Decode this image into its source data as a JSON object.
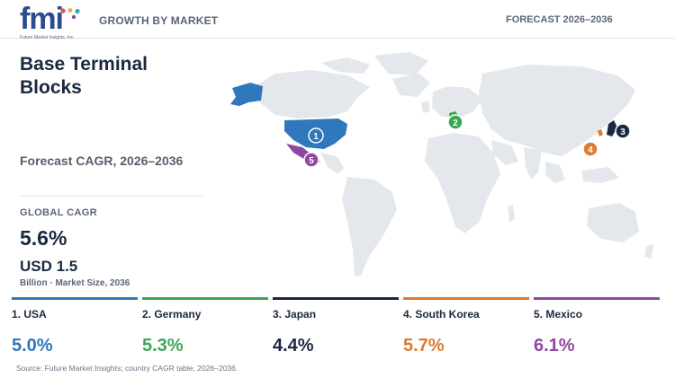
{
  "header": {
    "logo_text": "fmi",
    "logo_tagline": "Future Market Insights, Inc.",
    "growth_label": "GROWTH BY MARKET",
    "forecast_label": "FORECAST 2026–2036"
  },
  "summary": {
    "title": "Base Terminal Blocks",
    "cagr_subtitle": "Forecast CAGR, 2026–2036",
    "global_label": "GLOBAL CAGR",
    "global_value": "5.6%",
    "market_size": "USD 1.5",
    "market_caption": "Billion · Market Size, 2036"
  },
  "chart_data": {
    "type": "table",
    "title": "Base Terminal Blocks",
    "subtitle": "Forecast CAGR, 2026–2036",
    "global_cagr": 5.6,
    "market_size_usd_billion_2036": 1.5,
    "rows": [
      {
        "rank": 1,
        "label": "1. USA",
        "marker": "1",
        "value": 5.0,
        "display": "5.0%",
        "color": "#2f78bd"
      },
      {
        "rank": 2,
        "label": "2. Germany",
        "marker": "2",
        "value": 5.3,
        "display": "5.3%",
        "color": "#3aa655"
      },
      {
        "rank": 3,
        "label": "3. Japan",
        "marker": "3",
        "value": 4.4,
        "display": "4.4%",
        "color": "#1a2942"
      },
      {
        "rank": 4,
        "label": "4. South Korea",
        "marker": "4",
        "value": 5.7,
        "display": "5.7%",
        "color": "#e07a2e"
      },
      {
        "rank": 5,
        "label": "5. Mexico",
        "marker": "5",
        "value": 6.1,
        "display": "6.1%",
        "color": "#8e48a0"
      }
    ]
  },
  "colors": {
    "land": "#e4e7ec",
    "usa": "#2f78bd",
    "germany": "#3aa655",
    "japan": "#1a2942",
    "south_korea": "#e07a2e",
    "mexico": "#8e48a0"
  },
  "footer": {
    "source": "Source: Future Market Insights; country CAGR table, 2026–2036."
  }
}
